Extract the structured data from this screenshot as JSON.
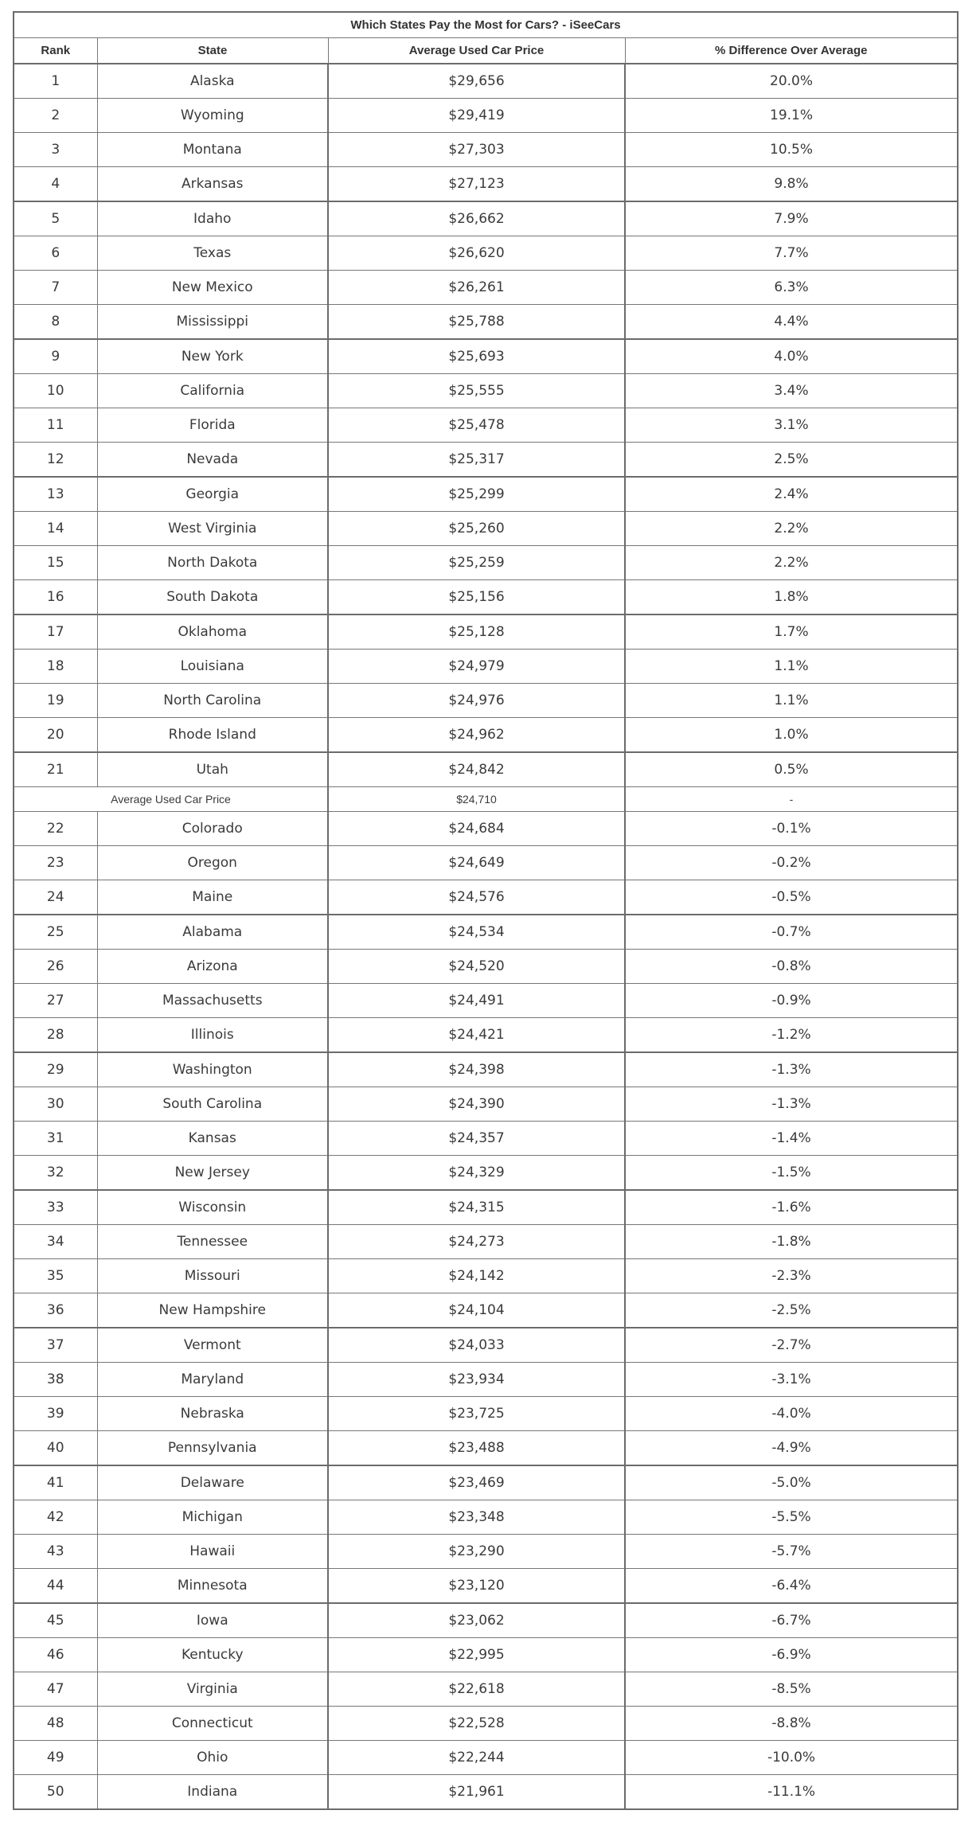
{
  "title": "Which States Pay the Most for Cars? - iSeeCars",
  "headers": [
    "Rank",
    "State",
    "Average Used Car Price",
    "% Difference Over Average"
  ],
  "average_row": {
    "label": "Average Used Car Price",
    "price": "$24,710",
    "diff": "-"
  },
  "rows": [
    [
      "1",
      "Alaska",
      "$29,656",
      "20.0%"
    ],
    [
      "2",
      "Wyoming",
      "$29,419",
      "19.1%"
    ],
    [
      "3",
      "Montana",
      "$27,303",
      "10.5%"
    ],
    [
      "4",
      "Arkansas",
      "$27,123",
      "9.8%"
    ],
    [
      "5",
      "Idaho",
      "$26,662",
      "7.9%"
    ],
    [
      "6",
      "Texas",
      "$26,620",
      "7.7%"
    ],
    [
      "7",
      "New Mexico",
      "$26,261",
      "6.3%"
    ],
    [
      "8",
      "Mississippi",
      "$25,788",
      "4.4%"
    ],
    [
      "9",
      "New York",
      "$25,693",
      "4.0%"
    ],
    [
      "10",
      "California",
      "$25,555",
      "3.4%"
    ],
    [
      "11",
      "Florida",
      "$25,478",
      "3.1%"
    ],
    [
      "12",
      "Nevada",
      "$25,317",
      "2.5%"
    ],
    [
      "13",
      "Georgia",
      "$25,299",
      "2.4%"
    ],
    [
      "14",
      "West Virginia",
      "$25,260",
      "2.2%"
    ],
    [
      "15",
      "North Dakota",
      "$25,259",
      "2.2%"
    ],
    [
      "16",
      "South Dakota",
      "$25,156",
      "1.8%"
    ],
    [
      "17",
      "Oklahoma",
      "$25,128",
      "1.7%"
    ],
    [
      "18",
      "Louisiana",
      "$24,979",
      "1.1%"
    ],
    [
      "19",
      "North Carolina",
      "$24,976",
      "1.1%"
    ],
    [
      "20",
      "Rhode Island",
      "$24,962",
      "1.0%"
    ],
    [
      "21",
      "Utah",
      "$24,842",
      "0.5%"
    ],
    [
      "22",
      "Colorado",
      "$24,684",
      "-0.1%"
    ],
    [
      "23",
      "Oregon",
      "$24,649",
      "-0.2%"
    ],
    [
      "24",
      "Maine",
      "$24,576",
      "-0.5%"
    ],
    [
      "25",
      "Alabama",
      "$24,534",
      "-0.7%"
    ],
    [
      "26",
      "Arizona",
      "$24,520",
      "-0.8%"
    ],
    [
      "27",
      "Massachusetts",
      "$24,491",
      "-0.9%"
    ],
    [
      "28",
      "Illinois",
      "$24,421",
      "-1.2%"
    ],
    [
      "29",
      "Washington",
      "$24,398",
      "-1.3%"
    ],
    [
      "30",
      "South Carolina",
      "$24,390",
      "-1.3%"
    ],
    [
      "31",
      "Kansas",
      "$24,357",
      "-1.4%"
    ],
    [
      "32",
      "New Jersey",
      "$24,329",
      "-1.5%"
    ],
    [
      "33",
      "Wisconsin",
      "$24,315",
      "-1.6%"
    ],
    [
      "34",
      "Tennessee",
      "$24,273",
      "-1.8%"
    ],
    [
      "35",
      "Missouri",
      "$24,142",
      "-2.3%"
    ],
    [
      "36",
      "New Hampshire",
      "$24,104",
      "-2.5%"
    ],
    [
      "37",
      "Vermont",
      "$24,033",
      "-2.7%"
    ],
    [
      "38",
      "Maryland",
      "$23,934",
      "-3.1%"
    ],
    [
      "39",
      "Nebraska",
      "$23,725",
      "-4.0%"
    ],
    [
      "40",
      "Pennsylvania",
      "$23,488",
      "-4.9%"
    ],
    [
      "41",
      "Delaware",
      "$23,469",
      "-5.0%"
    ],
    [
      "42",
      "Michigan",
      "$23,348",
      "-5.5%"
    ],
    [
      "43",
      "Hawaii",
      "$23,290",
      "-5.7%"
    ],
    [
      "44",
      "Minnesota",
      "$23,120",
      "-6.4%"
    ],
    [
      "45",
      "Iowa",
      "$23,062",
      "-6.7%"
    ],
    [
      "46",
      "Kentucky",
      "$22,995",
      "-6.9%"
    ],
    [
      "47",
      "Virginia",
      "$22,618",
      "-8.5%"
    ],
    [
      "48",
      "Connecticut",
      "$22,528",
      "-8.8%"
    ],
    [
      "49",
      "Ohio",
      "$22,244",
      "-10.0%"
    ],
    [
      "50",
      "Indiana",
      "$21,961",
      "-11.1%"
    ]
  ]
}
